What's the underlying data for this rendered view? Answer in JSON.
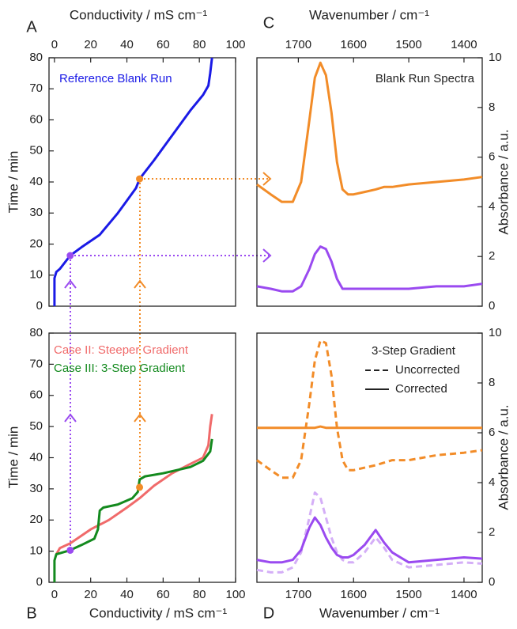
{
  "chart_data": [
    {
      "type": "line",
      "label": "A",
      "xlabel": "Conductivity / mS cm⁻¹",
      "ylabel": "Time / min",
      "xaxis_position": "top",
      "yaxis_position": "left",
      "xlim": [
        -3,
        100
      ],
      "ylim": [
        0,
        80
      ],
      "xticks": [
        0,
        20,
        40,
        60,
        80,
        100
      ],
      "yticks": [
        0,
        10,
        20,
        30,
        40,
        50,
        60,
        70,
        80
      ],
      "series": [
        {
          "name": "Reference Blank Run",
          "color": "#1a1ae6",
          "x": [
            0,
            0,
            1,
            3,
            8.7,
            15,
            25,
            35,
            45,
            47,
            55,
            65,
            75,
            82,
            85,
            86,
            87
          ],
          "values": [
            0,
            9,
            11,
            12,
            16.3,
            19,
            23,
            30,
            38,
            41,
            47,
            55,
            63,
            68,
            71,
            75,
            80
          ]
        }
      ],
      "points": [
        {
          "x": 47,
          "y": 41,
          "color": "#f28c28"
        },
        {
          "x": 8.7,
          "y": 16.3,
          "color": "#9a4af0"
        }
      ]
    },
    {
      "type": "line",
      "label": "B",
      "xlabel": "Conductivity / mS cm⁻¹",
      "ylabel": "Time / min",
      "xaxis_position": "bottom",
      "yaxis_position": "left",
      "xlim": [
        -3,
        100
      ],
      "ylim": [
        0,
        80
      ],
      "xticks": [
        0,
        20,
        40,
        60,
        80,
        100
      ],
      "yticks": [
        0,
        10,
        20,
        30,
        40,
        50,
        60,
        70,
        80
      ],
      "series": [
        {
          "name": "Case II:  Steeper Gradient",
          "color": "#f06a6a",
          "x": [
            1,
            3,
            8.7,
            20,
            30,
            40,
            47,
            55,
            65,
            75,
            82,
            85,
            86,
            87
          ],
          "values": [
            9,
            11,
            12.5,
            17,
            20,
            24,
            27,
            31,
            35,
            38,
            40,
            44,
            50,
            54
          ]
        },
        {
          "name": "Case III: 3-Step Gradient",
          "color": "#138a1e",
          "x": [
            0,
            0,
            1,
            8.7,
            15,
            22,
            24,
            25,
            27,
            35,
            43,
            46,
            47,
            50,
            60,
            75,
            82,
            86,
            87
          ],
          "values": [
            0,
            7,
            9,
            10.3,
            12,
            14,
            17,
            23,
            24,
            25,
            27,
            29,
            33,
            34,
            35,
            37,
            39,
            42,
            46
          ]
        }
      ],
      "points": [
        {
          "x": 47,
          "y": 30.5,
          "color": "#f28c28"
        },
        {
          "x": 8.7,
          "y": 10.3,
          "color": "#9a4af0"
        }
      ]
    },
    {
      "type": "line",
      "label": "C",
      "xlabel": "Wavenumber / cm⁻¹",
      "ylabel": "Absorbance / a.u.",
      "annotation": "Blank Run Spectra",
      "xaxis_position": "top",
      "yaxis_position": "right",
      "xlim": [
        1775,
        1367
      ],
      "ylim": [
        0,
        10
      ],
      "xticks": [
        1700,
        1600,
        1500,
        1400
      ],
      "yticks": [
        0,
        2,
        4,
        6,
        8,
        10
      ],
      "series": [
        {
          "color": "#f28c28",
          "dash": false,
          "x": [
            1775,
            1750,
            1730,
            1710,
            1695,
            1680,
            1670,
            1660,
            1650,
            1640,
            1630,
            1620,
            1610,
            1600,
            1580,
            1560,
            1545,
            1530,
            1500,
            1450,
            1400,
            1367
          ],
          "values": [
            4.9,
            4.5,
            4.2,
            4.2,
            5.0,
            7.5,
            9.2,
            9.8,
            9.3,
            7.8,
            5.8,
            4.7,
            4.5,
            4.5,
            4.6,
            4.7,
            4.8,
            4.8,
            4.9,
            5.0,
            5.1,
            5.2
          ]
        },
        {
          "color": "#9a4af0",
          "dash": false,
          "x": [
            1775,
            1750,
            1730,
            1710,
            1695,
            1680,
            1670,
            1660,
            1650,
            1640,
            1630,
            1620,
            1610,
            1600,
            1580,
            1560,
            1545,
            1530,
            1500,
            1450,
            1400,
            1367
          ],
          "values": [
            0.8,
            0.7,
            0.6,
            0.6,
            0.8,
            1.5,
            2.1,
            2.4,
            2.3,
            1.8,
            1.1,
            0.7,
            0.7,
            0.7,
            0.7,
            0.7,
            0.7,
            0.7,
            0.7,
            0.8,
            0.8,
            0.9
          ]
        }
      ]
    },
    {
      "type": "line",
      "label": "D",
      "xlabel": "Wavenumber / cm⁻¹",
      "ylabel": "Absorbance / a.u.",
      "xaxis_position": "bottom",
      "yaxis_position": "right",
      "xlim": [
        1775,
        1367
      ],
      "ylim": [
        0,
        10
      ],
      "xticks": [
        1700,
        1600,
        1500,
        1400
      ],
      "yticks": [
        0,
        2,
        4,
        6,
        8,
        10
      ],
      "legend": {
        "title": "3-Step Gradient",
        "entries": [
          {
            "label": "Uncorrected",
            "dash": true
          },
          {
            "label": "Corrected",
            "dash": false
          }
        ]
      },
      "series": [
        {
          "color": "#f28c28",
          "dash": true,
          "x": [
            1775,
            1750,
            1730,
            1710,
            1695,
            1680,
            1670,
            1660,
            1650,
            1640,
            1630,
            1620,
            1610,
            1600,
            1580,
            1560,
            1545,
            1530,
            1500,
            1450,
            1400,
            1367
          ],
          "values": [
            4.9,
            4.5,
            4.2,
            4.2,
            4.9,
            7.2,
            8.9,
            9.7,
            9.6,
            8.3,
            6.2,
            4.9,
            4.5,
            4.5,
            4.6,
            4.7,
            4.8,
            4.9,
            4.9,
            5.1,
            5.2,
            5.3
          ]
        },
        {
          "color": "#f28c28",
          "dash": false,
          "x": [
            1775,
            1750,
            1730,
            1710,
            1695,
            1680,
            1670,
            1660,
            1650,
            1640,
            1630,
            1620,
            1610,
            1600,
            1580,
            1560,
            1545,
            1530,
            1500,
            1450,
            1400,
            1367
          ],
          "values": [
            6.2,
            6.2,
            6.2,
            6.2,
            6.2,
            6.2,
            6.2,
            6.25,
            6.2,
            6.2,
            6.2,
            6.2,
            6.2,
            6.2,
            6.2,
            6.2,
            6.2,
            6.2,
            6.2,
            6.2,
            6.2,
            6.2
          ]
        },
        {
          "color": "#d4aef7",
          "dash": true,
          "x": [
            1775,
            1750,
            1730,
            1710,
            1695,
            1680,
            1670,
            1660,
            1650,
            1640,
            1630,
            1620,
            1610,
            1600,
            1580,
            1560,
            1545,
            1530,
            1500,
            1450,
            1400,
            1367
          ],
          "values": [
            0.5,
            0.4,
            0.4,
            0.6,
            1.2,
            2.6,
            3.6,
            3.4,
            2.6,
            1.8,
            1.2,
            0.9,
            0.8,
            0.8,
            1.2,
            1.8,
            1.4,
            0.9,
            0.6,
            0.7,
            0.8,
            0.75
          ]
        },
        {
          "color": "#9a4af0",
          "dash": false,
          "x": [
            1775,
            1750,
            1730,
            1710,
            1695,
            1680,
            1670,
            1660,
            1650,
            1640,
            1630,
            1620,
            1610,
            1600,
            1580,
            1560,
            1545,
            1530,
            1500,
            1450,
            1400,
            1367
          ],
          "values": [
            0.9,
            0.8,
            0.8,
            0.9,
            1.3,
            2.2,
            2.6,
            2.3,
            1.8,
            1.4,
            1.1,
            1.0,
            1.0,
            1.1,
            1.5,
            2.1,
            1.6,
            1.2,
            0.8,
            0.9,
            1.0,
            0.95
          ]
        }
      ]
    }
  ]
}
